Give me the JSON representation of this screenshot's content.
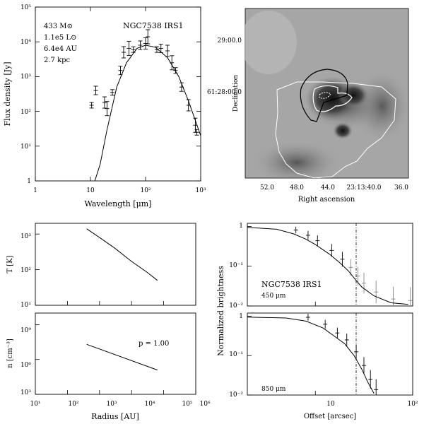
{
  "sed": {
    "annot": [
      "433 M⊙",
      "1.1e5 L⊙",
      "6.4e4 AU",
      "2.7 kpc"
    ],
    "source": "NGC7538 IRS1",
    "xlabel": "Wavelength [μm]",
    "ylabel": "Flux density [Jy]",
    "xticks": [
      "1",
      "10",
      "10²",
      "10³"
    ],
    "yticks": [
      "1",
      "10¹",
      "10²",
      "10³",
      "10⁴",
      "10⁵"
    ]
  },
  "image": {
    "ylabel": "Declination",
    "xlabel": "Right ascension",
    "yticks": [
      "29:00.0",
      "61:28:00.0"
    ],
    "xticks": [
      "52.0",
      "48.0",
      "44.0",
      "23:13:40.0",
      "36.0"
    ]
  },
  "temp": {
    "ylabel": "T [K]",
    "yticks": [
      "10¹",
      "10²",
      "10³"
    ]
  },
  "dens": {
    "ylabel": "n [cm⁻³]",
    "yticks": [
      "10³",
      "10⁶",
      "10⁹"
    ],
    "annot": "p = 1.00",
    "xlabel": "Radius [AU]",
    "xticks": [
      "10¹",
      "10²",
      "10³",
      "10⁴",
      "10⁵",
      "10⁶"
    ]
  },
  "prof": {
    "ylabel": "Normalized brightness",
    "xlabel": "Offset [arcsec]",
    "source": "NGC7538 IRS1",
    "band1": "450 μm",
    "band2": "850 μm",
    "yticks": [
      "10⁻²",
      "10⁻¹",
      "1"
    ],
    "xticks": [
      "10",
      "10²"
    ]
  },
  "chart_data": [
    {
      "type": "scatter",
      "title": "NGC7538 IRS1",
      "xlabel": "Wavelength [μm]",
      "ylabel": "Flux density [Jy]",
      "xscale": "log",
      "yscale": "log",
      "xlim": [
        1,
        1000
      ],
      "ylim": [
        1,
        100000
      ],
      "points": [
        {
          "x": 10.5,
          "y": 150
        },
        {
          "x": 12.5,
          "y": 400
        },
        {
          "x": 18,
          "y": 180
        },
        {
          "x": 20,
          "y": 120
        },
        {
          "x": 25,
          "y": 350
        },
        {
          "x": 35,
          "y": 1500
        },
        {
          "x": 40,
          "y": 5000
        },
        {
          "x": 50,
          "y": 6500
        },
        {
          "x": 60,
          "y": 6000
        },
        {
          "x": 80,
          "y": 8000
        },
        {
          "x": 100,
          "y": 9000
        },
        {
          "x": 110,
          "y": 14000
        },
        {
          "x": 160,
          "y": 6000
        },
        {
          "x": 190,
          "y": 6500
        },
        {
          "x": 250,
          "y": 5500
        },
        {
          "x": 300,
          "y": 2500
        },
        {
          "x": 350,
          "y": 1500
        },
        {
          "x": 450,
          "y": 500
        },
        {
          "x": 600,
          "y": 150
        },
        {
          "x": 800,
          "y": 40
        },
        {
          "x": 850,
          "y": 25
        }
      ],
      "model": [
        {
          "x": 12,
          "y": 1
        },
        {
          "x": 15,
          "y": 3
        },
        {
          "x": 20,
          "y": 30
        },
        {
          "x": 30,
          "y": 500
        },
        {
          "x": 45,
          "y": 2500
        },
        {
          "x": 70,
          "y": 6500
        },
        {
          "x": 100,
          "y": 8000
        },
        {
          "x": 150,
          "y": 7000
        },
        {
          "x": 250,
          "y": 3500
        },
        {
          "x": 400,
          "y": 1000
        },
        {
          "x": 600,
          "y": 200
        },
        {
          "x": 1000,
          "y": 20
        }
      ]
    },
    {
      "type": "line",
      "xlabel": "Radius [AU]",
      "ylabel": "T [K]",
      "xscale": "log",
      "yscale": "log",
      "xlim": [
        10,
        1000000
      ],
      "ylim": [
        10,
        2000
      ],
      "x": [
        400,
        1000,
        3000,
        10000,
        30000,
        64000
      ],
      "y": [
        1400,
        800,
        400,
        170,
        85,
        50
      ]
    },
    {
      "type": "line",
      "xlabel": "Radius [AU]",
      "ylabel": "n [cm⁻³]",
      "xscale": "log",
      "yscale": "log",
      "xlim": [
        10,
        1000000
      ],
      "ylim": [
        1000,
        10000000000
      ],
      "x": [
        400,
        64000
      ],
      "y": [
        20000000,
        125000
      ],
      "annotation": "p = 1.00"
    },
    {
      "type": "line",
      "xlabel": "Offset [arcsec]",
      "ylabel": "Normalized brightness",
      "xscale": "log",
      "yscale": "log",
      "xlim": [
        2,
        100
      ],
      "ylim": [
        0.01,
        1.2
      ],
      "series": [
        {
          "name": "450 μm",
          "x": [
            2,
            4,
            6,
            8,
            10,
            14,
            18,
            22,
            26,
            30,
            40,
            60,
            90
          ],
          "y": [
            0.95,
            0.85,
            0.65,
            0.48,
            0.35,
            0.2,
            0.12,
            0.075,
            0.045,
            0.03,
            0.018,
            0.012,
            0.011
          ]
        },
        {
          "name": "850 μm",
          "x": [
            2,
            5,
            8,
            12,
            16,
            20,
            25,
            30,
            35,
            40
          ],
          "y": [
            0.95,
            0.9,
            0.75,
            0.5,
            0.3,
            0.2,
            0.1,
            0.045,
            0.02,
            0.011
          ]
        }
      ],
      "reference_offset": 25
    }
  ]
}
